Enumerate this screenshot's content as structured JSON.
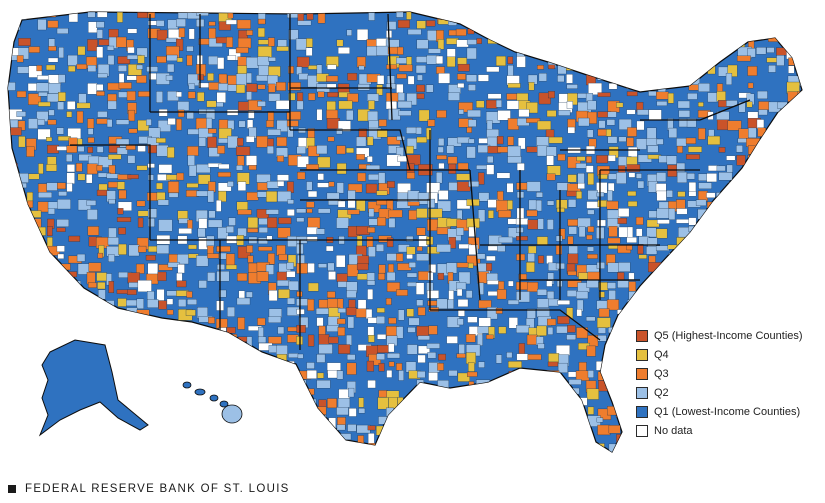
{
  "legend": {
    "items": [
      {
        "label": "Q5 (Highest-Income Counties)",
        "color": "#c9532a"
      },
      {
        "label": "Q4",
        "color": "#e5c03f"
      },
      {
        "label": "Q3",
        "color": "#ef7d2e"
      },
      {
        "label": "Q2",
        "color": "#9cc0e6"
      },
      {
        "label": "Q1 (Lowest-Income Counties)",
        "color": "#2f72c0"
      },
      {
        "label": "No data",
        "color": "#ffffff"
      }
    ]
  },
  "source": {
    "label": "FEDERAL RESERVE BANK OF ST. LOUIS",
    "icon": "square-bullet-icon"
  },
  "map": {
    "subject": "United States counties by income quintile",
    "base_color": "#2f72c0",
    "border_color": "#0d0d0d"
  }
}
